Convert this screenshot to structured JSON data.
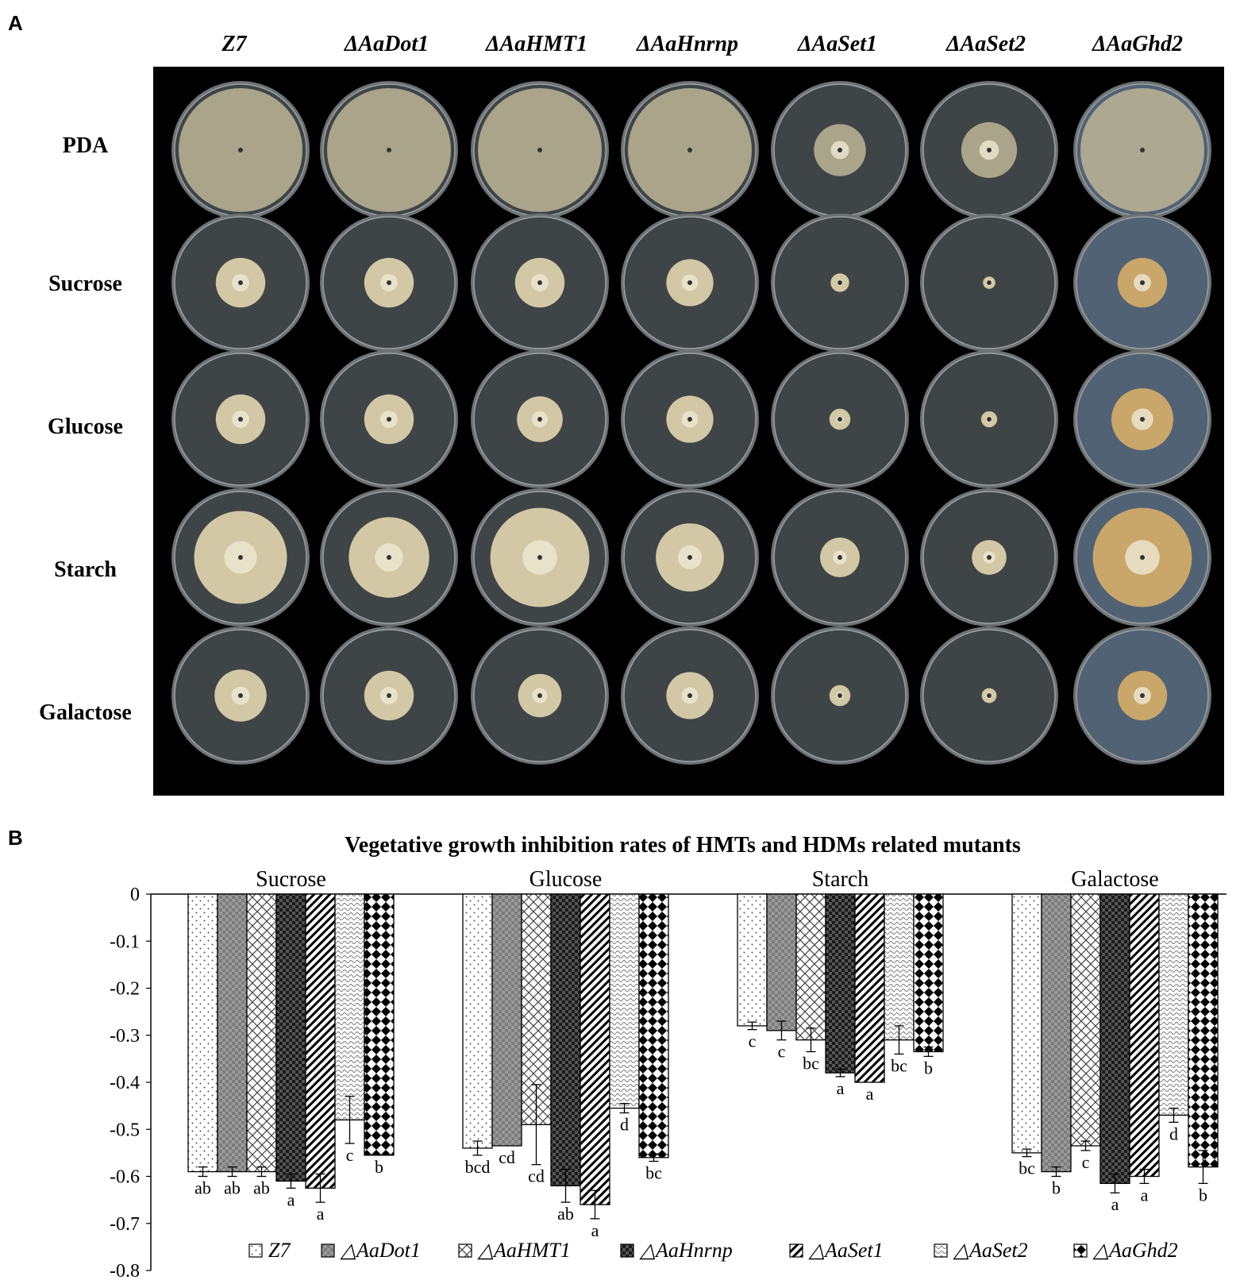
{
  "panel_a": {
    "letter": "A",
    "strains": [
      "Z7",
      "ΔAaDot1",
      "ΔAaHMT1",
      "ΔAaHnrnp",
      "ΔAaSet1",
      "ΔAaSet2",
      "ΔAaGhd2"
    ],
    "media": [
      "PDA",
      "Sucrose",
      "Glucose",
      "Starch",
      "Galactose"
    ],
    "colony_scale": [
      [
        1.0,
        1.0,
        1.0,
        1.0,
        0.42,
        0.45,
        1.0
      ],
      [
        0.4,
        0.4,
        0.4,
        0.38,
        0.15,
        0.1,
        0.4
      ],
      [
        0.4,
        0.4,
        0.37,
        0.38,
        0.17,
        0.13,
        0.5
      ],
      [
        0.75,
        0.65,
        0.8,
        0.55,
        0.32,
        0.28,
        0.8
      ],
      [
        0.42,
        0.4,
        0.35,
        0.38,
        0.17,
        0.12,
        0.4
      ]
    ],
    "colors": {
      "background": "#000000",
      "plate": "#3f4446",
      "mycelium": "#d2c8a6",
      "ghd2_plate": "#516274",
      "ghd2_mycelium": "#c9a66a"
    }
  },
  "panel_b": {
    "letter": "B"
  },
  "chart_data": {
    "type": "bar",
    "title": "Vegetative growth inhibition rates of HMTs and HDMs related mutants",
    "groups": [
      "Sucrose",
      "Glucose",
      "Starch",
      "Galactose"
    ],
    "ylim": [
      -0.8,
      0
    ],
    "yticks": [
      "0",
      "-0.1",
      "-0.2",
      "-0.3",
      "-0.4",
      "-0.5",
      "-0.6",
      "-0.7",
      "-0.8"
    ],
    "legend_position": "bottom",
    "series": [
      {
        "name": "Z7",
        "pattern": "dots",
        "values": [
          -0.59,
          -0.54,
          -0.28,
          -0.55
        ],
        "errors": [
          0.01,
          0.015,
          0.008,
          0.008
        ],
        "letters": [
          "ab",
          "bcd",
          "c",
          "bc"
        ]
      },
      {
        "name": "△AaDot1",
        "pattern": "gray-check",
        "values": [
          -0.59,
          -0.535,
          -0.29,
          -0.59
        ],
        "errors": [
          0.01,
          0.0,
          0.02,
          0.01
        ],
        "letters": [
          "ab",
          "cd",
          "c",
          "b"
        ]
      },
      {
        "name": "△AaHMT1",
        "pattern": "crosshatch",
        "values": [
          -0.59,
          -0.49,
          -0.31,
          -0.535
        ],
        "errors": [
          0.01,
          0.085,
          0.025,
          0.01
        ],
        "letters": [
          "ab",
          "cd",
          "bc",
          "c"
        ]
      },
      {
        "name": "△AaHnrnp",
        "pattern": "dark-check",
        "values": [
          -0.61,
          -0.62,
          -0.38,
          -0.615
        ],
        "errors": [
          0.015,
          0.035,
          0.008,
          0.02
        ],
        "letters": [
          "a",
          "ab",
          "a",
          "a"
        ]
      },
      {
        "name": "△AaSet1",
        "pattern": "diagonal",
        "values": [
          -0.625,
          -0.66,
          -0.4,
          -0.6
        ],
        "errors": [
          0.03,
          0.03,
          0.0,
          0.015
        ],
        "letters": [
          "a",
          "a",
          "a",
          "a"
        ]
      },
      {
        "name": "△AaSet2",
        "pattern": "waves",
        "values": [
          -0.48,
          -0.455,
          -0.31,
          -0.47
        ],
        "errors": [
          0.05,
          0.01,
          0.03,
          0.015
        ],
        "letters": [
          "c",
          "d",
          "bc",
          "d"
        ]
      },
      {
        "name": "△AaGhd2",
        "pattern": "diamonds",
        "values": [
          -0.555,
          -0.56,
          -0.335,
          -0.58
        ],
        "errors": [
          0.0,
          0.008,
          0.01,
          0.035
        ],
        "letters": [
          "b",
          "bc",
          "b",
          "b"
        ]
      }
    ]
  }
}
